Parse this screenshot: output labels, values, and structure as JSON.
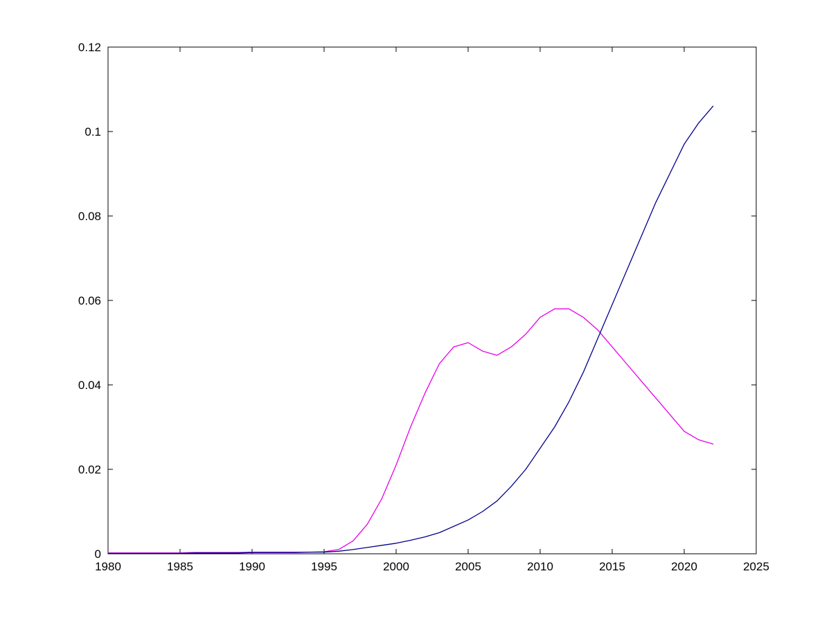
{
  "figure": {
    "background": "#ffffff"
  },
  "chart_data": {
    "type": "line",
    "title": "",
    "xlabel": "",
    "ylabel": "",
    "grid": false,
    "legend": null,
    "box": true,
    "xlim": [
      1980,
      2025
    ],
    "ylim": [
      0,
      0.12
    ],
    "x_ticks": [
      1980,
      1985,
      1990,
      1995,
      2000,
      2005,
      2010,
      2015,
      2020,
      2025
    ],
    "x_tick_labels": [
      "1980",
      "1985",
      "1990",
      "1995",
      "2000",
      "2005",
      "2010",
      "2015",
      "2020",
      "2025"
    ],
    "y_ticks": [
      0,
      0.02,
      0.04,
      0.06,
      0.08,
      0.1,
      0.12
    ],
    "y_tick_labels": [
      "0",
      "0.02",
      "0.04",
      "0.06",
      "0.08",
      "0.1",
      "0.12"
    ],
    "x": [
      1980,
      1981,
      1982,
      1983,
      1984,
      1985,
      1986,
      1987,
      1988,
      1989,
      1990,
      1991,
      1992,
      1993,
      1994,
      1995,
      1996,
      1997,
      1998,
      1999,
      2000,
      2001,
      2002,
      2003,
      2004,
      2005,
      2006,
      2007,
      2008,
      2009,
      2010,
      2011,
      2012,
      2013,
      2014,
      2015,
      2016,
      2017,
      2018,
      2019,
      2020,
      2021,
      2022
    ],
    "series": [
      {
        "name": "magenta-curve",
        "color": "#e800e8",
        "values": [
          0.0002,
          0.0002,
          0.0002,
          0.0002,
          0.0002,
          0.0002,
          0.0003,
          0.0003,
          0.0003,
          0.0003,
          0.0004,
          0.0004,
          0.0004,
          0.0004,
          0.0004,
          0.0005,
          0.001,
          0.003,
          0.007,
          0.013,
          0.021,
          0.03,
          0.038,
          0.045,
          0.049,
          0.05,
          0.048,
          0.047,
          0.049,
          0.052,
          0.056,
          0.058,
          0.058,
          0.056,
          0.053,
          0.049,
          0.045,
          0.041,
          0.037,
          0.033,
          0.029,
          0.027,
          0.026
        ]
      },
      {
        "name": "dark-blue-curve",
        "color": "#00008b",
        "values": [
          0.0001,
          0.0001,
          0.0001,
          0.0001,
          0.0001,
          0.0001,
          0.0002,
          0.0002,
          0.0002,
          0.0002,
          0.0003,
          0.0003,
          0.0003,
          0.0003,
          0.0004,
          0.0004,
          0.0006,
          0.001,
          0.0015,
          0.002,
          0.0025,
          0.0032,
          0.004,
          0.005,
          0.0065,
          0.008,
          0.01,
          0.0125,
          0.016,
          0.02,
          0.025,
          0.03,
          0.036,
          0.043,
          0.051,
          0.059,
          0.067,
          0.075,
          0.083,
          0.09,
          0.097,
          0.102,
          0.106
        ]
      }
    ]
  }
}
